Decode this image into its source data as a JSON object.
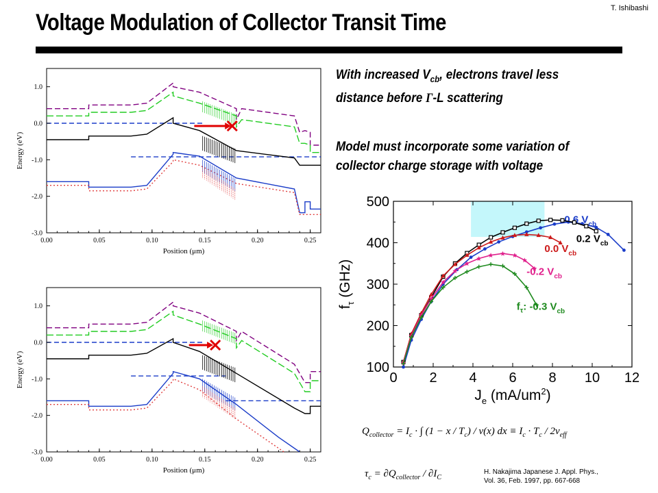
{
  "author": "T. Ishibashi",
  "title": "Voltage Modulation of Collector Transit Time",
  "bullets": [
    {
      "before": "With increased V",
      "sub": "cb",
      "after": ", electrons travel less",
      "line2_before": "distance before ",
      "gamma": "Γ",
      "line2_after": "-L scattering"
    },
    {
      "line1": "Model must incorporate some variation of",
      "line2": "collector charge storage with voltage"
    }
  ],
  "equations": {
    "q_lhs": "Q",
    "q_lhs_sub": "collector",
    "q_body": "= I",
    "q_body_sub": "c",
    "q_integral": "· ∫ (1 − x / T",
    "q_integral_rest": ") / v(x) dx ≡ I",
    "q_rhs": "· T",
    "q_rhs_den": "/ 2v",
    "q_rhs_den_sub": "eff",
    "tau_lhs": "τ",
    "tau_body": "= ∂Q",
    "tau_body_sub": "collector",
    "tau_rest": "/ ∂I",
    "tau_rest_sub": "C"
  },
  "citation": {
    "line1": "H. Nakajima Japanese J. Appl. Phys.,",
    "line2": "Vol. 36, Feb. 1997, pp. 667-668"
  },
  "chart_data": [
    {
      "type": "line",
      "panel": "top band diagram",
      "xlabel": "Position (μm)",
      "ylabel": "Energy (eV)",
      "xlim": [
        0.0,
        0.26
      ],
      "ylim": [
        -3.0,
        1.5
      ],
      "xticks": [
        "0.00",
        "0.05",
        "0.10",
        "0.15",
        "0.20",
        "0.25"
      ],
      "yticks": [
        "1.0",
        "0.0",
        "-1.0",
        "-2.0",
        "-3.0"
      ],
      "grid": false,
      "series": [
        {
          "color": "#800080",
          "dash": "8,4",
          "points": [
            [
              0,
              0.4
            ],
            [
              0.04,
              0.4
            ],
            [
              0.04,
              0.5
            ],
            [
              0.08,
              0.5
            ],
            [
              0.095,
              0.55
            ],
            [
              0.12,
              1.1
            ],
            [
              0.12,
              1.0
            ],
            [
              0.145,
              0.85
            ],
            [
              0.18,
              0.4
            ],
            [
              0.18,
              0.1
            ],
            [
              0.185,
              0.4
            ],
            [
              0.235,
              0.2
            ],
            [
              0.24,
              -0.25
            ],
            [
              0.245,
              -0.2
            ],
            [
              0.25,
              -0.25
            ],
            [
              0.25,
              -0.6
            ],
            [
              0.26,
              -0.6
            ]
          ]
        },
        {
          "color": "#22cc22",
          "dash": "10,4",
          "points": [
            [
              0,
              0.2
            ],
            [
              0.04,
              0.2
            ],
            [
              0.04,
              0.3
            ],
            [
              0.08,
              0.3
            ],
            [
              0.095,
              0.35
            ],
            [
              0.12,
              0.85
            ],
            [
              0.12,
              0.75
            ],
            [
              0.145,
              0.55
            ],
            [
              0.18,
              0.2
            ],
            [
              0.18,
              -0.1
            ],
            [
              0.185,
              0.1
            ],
            [
              0.235,
              -0.1
            ],
            [
              0.24,
              -0.55
            ],
            [
              0.245,
              -0.55
            ],
            [
              0.25,
              -0.6
            ],
            [
              0.25,
              -0.8
            ],
            [
              0.26,
              -0.8
            ]
          ]
        },
        {
          "color": "#1a3cc8",
          "dash": "7,4",
          "points": [
            [
              0,
              0.0
            ],
            [
              0.15,
              0.0
            ]
          ]
        },
        {
          "color": "#1a3cc8",
          "dash": "7,4",
          "points": [
            [
              0.08,
              -0.92
            ],
            [
              0.26,
              -0.92
            ]
          ]
        },
        {
          "color": "#000000",
          "dash": "",
          "points": [
            [
              0,
              -0.45
            ],
            [
              0.04,
              -0.45
            ],
            [
              0.04,
              -0.35
            ],
            [
              0.08,
              -0.35
            ],
            [
              0.095,
              -0.3
            ],
            [
              0.12,
              0.15
            ],
            [
              0.12,
              0.0
            ],
            [
              0.145,
              -0.2
            ],
            [
              0.18,
              -0.75
            ],
            [
              0.235,
              -0.95
            ],
            [
              0.24,
              -1.15
            ],
            [
              0.26,
              -1.15
            ]
          ]
        },
        {
          "color": "#1a3cc8",
          "dash": "",
          "points": [
            [
              0,
              -1.6
            ],
            [
              0.04,
              -1.6
            ],
            [
              0.04,
              -1.75
            ],
            [
              0.08,
              -1.75
            ],
            [
              0.095,
              -1.7
            ],
            [
              0.12,
              -0.85
            ],
            [
              0.12,
              -0.8
            ],
            [
              0.145,
              -0.9
            ],
            [
              0.18,
              -1.5
            ],
            [
              0.235,
              -1.8
            ],
            [
              0.24,
              -2.45
            ],
            [
              0.245,
              -2.45
            ],
            [
              0.245,
              -2.15
            ],
            [
              0.25,
              -2.15
            ],
            [
              0.25,
              -2.35
            ],
            [
              0.26,
              -2.35
            ]
          ]
        },
        {
          "color": "#e03c3c",
          "dash": "2,3",
          "points": [
            [
              0,
              -1.7
            ],
            [
              0.04,
              -1.7
            ],
            [
              0.04,
              -1.85
            ],
            [
              0.08,
              -1.85
            ],
            [
              0.095,
              -1.8
            ],
            [
              0.12,
              -1.05
            ],
            [
              0.12,
              -1.0
            ],
            [
              0.145,
              -1.15
            ],
            [
              0.18,
              -1.65
            ],
            [
              0.235,
              -1.9
            ],
            [
              0.24,
              -2.5
            ],
            [
              0.26,
              -2.5
            ]
          ]
        }
      ],
      "annotation": {
        "arrow_from": [
          0.14,
          0.0
        ],
        "arrow_to": [
          0.175,
          0.0
        ],
        "cross_at": [
          0.176,
          0.0
        ]
      }
    },
    {
      "type": "line",
      "panel": "bottom band diagram",
      "xlabel": "Position (μm)",
      "ylabel": "Energy (eV)",
      "xlim": [
        0.0,
        0.26
      ],
      "ylim": [
        -3.0,
        1.5
      ],
      "xticks": [
        "0.00",
        "0.05",
        "0.10",
        "0.15",
        "0.20",
        "0.25"
      ],
      "yticks": [
        "1.0",
        "0.0",
        "-1.0",
        "-2.0",
        "-3.0"
      ],
      "grid": false,
      "series": [
        {
          "color": "#800080",
          "dash": "8,4",
          "points": [
            [
              0,
              0.4
            ],
            [
              0.04,
              0.4
            ],
            [
              0.04,
              0.5
            ],
            [
              0.08,
              0.5
            ],
            [
              0.095,
              0.55
            ],
            [
              0.12,
              1.1
            ],
            [
              0.12,
              1.0
            ],
            [
              0.145,
              0.8
            ],
            [
              0.18,
              0.3
            ],
            [
              0.18,
              0.05
            ],
            [
              0.185,
              0.3
            ],
            [
              0.235,
              -0.6
            ],
            [
              0.245,
              -1.1
            ],
            [
              0.25,
              -1.1
            ],
            [
              0.25,
              -0.8
            ],
            [
              0.26,
              -0.8
            ]
          ]
        },
        {
          "color": "#22cc22",
          "dash": "10,4",
          "points": [
            [
              0,
              0.2
            ],
            [
              0.04,
              0.2
            ],
            [
              0.04,
              0.3
            ],
            [
              0.08,
              0.3
            ],
            [
              0.095,
              0.35
            ],
            [
              0.12,
              0.85
            ],
            [
              0.12,
              0.75
            ],
            [
              0.145,
              0.5
            ],
            [
              0.18,
              0.1
            ],
            [
              0.18,
              -0.15
            ],
            [
              0.185,
              0.05
            ],
            [
              0.235,
              -0.85
            ],
            [
              0.245,
              -1.35
            ],
            [
              0.25,
              -1.35
            ],
            [
              0.25,
              -1.05
            ],
            [
              0.26,
              -1.05
            ]
          ]
        },
        {
          "color": "#1a3cc8",
          "dash": "7,4",
          "points": [
            [
              0,
              0.0
            ],
            [
              0.15,
              0.0
            ]
          ]
        },
        {
          "color": "#1a3cc8",
          "dash": "7,4",
          "points": [
            [
              0.08,
              -0.92
            ],
            [
              0.17,
              -0.92
            ]
          ]
        },
        {
          "color": "#1a3cc8",
          "dash": "7,4",
          "points": [
            [
              0.17,
              -1.6
            ],
            [
              0.26,
              -1.6
            ]
          ]
        },
        {
          "color": "#000000",
          "dash": "",
          "points": [
            [
              0,
              -0.45
            ],
            [
              0.04,
              -0.45
            ],
            [
              0.04,
              -0.35
            ],
            [
              0.08,
              -0.35
            ],
            [
              0.095,
              -0.3
            ],
            [
              0.12,
              0.1
            ],
            [
              0.12,
              0.0
            ],
            [
              0.145,
              -0.25
            ],
            [
              0.18,
              -0.85
            ],
            [
              0.235,
              -1.8
            ],
            [
              0.245,
              -1.95
            ],
            [
              0.25,
              -1.95
            ],
            [
              0.25,
              -1.75
            ],
            [
              0.26,
              -1.75
            ]
          ]
        },
        {
          "color": "#1a3cc8",
          "dash": "",
          "points": [
            [
              0,
              -1.6
            ],
            [
              0.04,
              -1.6
            ],
            [
              0.04,
              -1.75
            ],
            [
              0.08,
              -1.75
            ],
            [
              0.095,
              -1.7
            ],
            [
              0.12,
              -0.85
            ],
            [
              0.12,
              -0.8
            ],
            [
              0.145,
              -1.0
            ],
            [
              0.18,
              -1.7
            ],
            [
              0.22,
              -2.6
            ],
            [
              0.24,
              -3.0
            ]
          ]
        },
        {
          "color": "#e03c3c",
          "dash": "2,3",
          "points": [
            [
              0,
              -1.7
            ],
            [
              0.04,
              -1.7
            ],
            [
              0.04,
              -1.85
            ],
            [
              0.08,
              -1.85
            ],
            [
              0.095,
              -1.8
            ],
            [
              0.12,
              -1.05
            ],
            [
              0.12,
              -1.0
            ],
            [
              0.145,
              -1.3
            ],
            [
              0.18,
              -2.1
            ],
            [
              0.205,
              -2.6
            ],
            [
              0.225,
              -3.0
            ]
          ]
        }
      ],
      "annotation": {
        "arrow_from": [
          0.135,
          0.0
        ],
        "arrow_to": [
          0.158,
          0.0
        ],
        "cross_at": [
          0.16,
          0.0
        ]
      }
    },
    {
      "type": "line",
      "panel": "fT vs Je",
      "xlabel": "J",
      "xlabel_sub": "e",
      "xlabel_unit": "(mA/um",
      "xlabel_sup": "2",
      "xlabel_close": ")",
      "ylabel": "f",
      "ylabel_sub": "τ",
      "ylabel_unit": "(GHz)",
      "xlim": [
        0,
        12
      ],
      "ylim": [
        100,
        500
      ],
      "xticks": [
        "0",
        "2",
        "4",
        "6",
        "8",
        "10",
        "12"
      ],
      "yticks": [
        "100",
        "200",
        "300",
        "400",
        "500"
      ],
      "grid": false,
      "highlight_box": {
        "x": [
          3.9,
          7.6
        ],
        "y": [
          414,
          500
        ],
        "color": "#c4f7fb"
      },
      "series": [
        {
          "name": "0.6 V",
          "sub": "cb",
          "color": "#1a3cc8",
          "marker": "circle",
          "label_at": [
            8.6,
            448
          ],
          "x": [
            0.5,
            0.9,
            1.4,
            1.9,
            2.5,
            3.2,
            3.9,
            4.6,
            5.3,
            6.0,
            6.7,
            7.4,
            8.1,
            8.8,
            9.5,
            10.2,
            10.8,
            11.6
          ],
          "y": [
            100,
            165,
            215,
            258,
            300,
            335,
            365,
            385,
            402,
            415,
            426,
            436,
            445,
            450,
            446,
            437,
            420,
            382
          ]
        },
        {
          "name": "0.2 V",
          "sub": "cb",
          "color": "#000000",
          "marker": "square",
          "label_at": [
            9.2,
            402
          ],
          "x": [
            0.5,
            0.9,
            1.4,
            1.9,
            2.5,
            3.1,
            3.7,
            4.3,
            4.9,
            5.5,
            6.1,
            6.7,
            7.3,
            7.9,
            8.5,
            9.1,
            9.7,
            10.2
          ],
          "y": [
            112,
            177,
            225,
            268,
            318,
            350,
            375,
            395,
            413,
            425,
            436,
            446,
            453,
            455,
            454,
            449,
            440,
            428
          ]
        },
        {
          "name": "0.0 V",
          "sub": "cb",
          "color": "#cc1a1a",
          "marker": "triangle",
          "label_at": [
            7.6,
            378
          ],
          "x": [
            0.5,
            0.9,
            1.4,
            1.9,
            2.5,
            3.1,
            3.7,
            4.3,
            4.9,
            5.5,
            6.1,
            6.7,
            7.3,
            7.9,
            8.4
          ],
          "y": [
            112,
            180,
            230,
            275,
            320,
            348,
            370,
            388,
            402,
            412,
            418,
            420,
            418,
            413,
            400
          ]
        },
        {
          "name": "-0.2 V",
          "sub": "cb",
          "color": "#e0208c",
          "marker": "star",
          "label_at": [
            6.7,
            322
          ],
          "x": [
            0.5,
            0.9,
            1.4,
            1.9,
            2.5,
            3.1,
            3.7,
            4.3,
            4.9,
            5.5,
            6.1,
            6.6,
            7.1
          ],
          "y": [
            110,
            175,
            225,
            265,
            305,
            332,
            350,
            362,
            370,
            374,
            370,
            358,
            338
          ]
        },
        {
          "name": "-0.3 V",
          "sub": "cb",
          "color": "#1e8a1e",
          "marker": "plus",
          "label_at": [
            6.2,
            238
          ],
          "x": [
            0.5,
            0.9,
            1.4,
            1.9,
            2.5,
            3.1,
            3.7,
            4.3,
            4.9,
            5.5,
            6.1,
            6.7,
            7.2
          ],
          "y": [
            108,
            172,
            220,
            258,
            292,
            315,
            330,
            342,
            348,
            344,
            325,
            292,
            250
          ]
        }
      ],
      "label_prefix": "f",
      "label_prefix_sub": "τ",
      "label_prefix_sep": ": "
    }
  ]
}
